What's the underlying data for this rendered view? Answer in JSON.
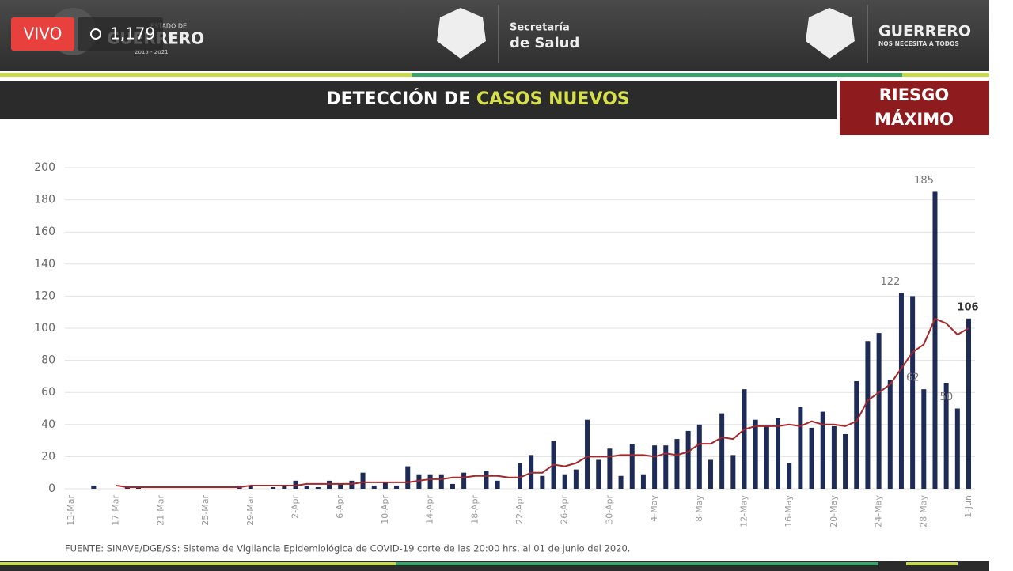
{
  "overlay": {
    "live": "VIVO",
    "viewers": "1,179"
  },
  "header": {
    "gov_small": "ESTADO DE",
    "gov_name": "GUERRERO",
    "gov_years": "2015 - 2021",
    "sec_line1": "Secretaría",
    "sec_line2": "de Salud",
    "brand": "GUERRERO",
    "brand_tag": "NOS NECESITA A TODOS",
    "title_part1": "DETECCIÓN DE",
    "title_part2": "CASOS NUEVOS",
    "risk_line1": "RIESGO",
    "risk_line2": "MÁXIMO"
  },
  "footer": {
    "source": "FUENTE: SINAVE/DGE/SS: Sistema de Vigilancia Epidemiológica de COVID-19 corte de las 20:00 hrs. al 01 de junio del 2020."
  },
  "chart_data": {
    "type": "bar",
    "categories": [
      "13-Mar",
      null,
      null,
      null,
      "17-Mar",
      null,
      null,
      null,
      "21-Mar",
      null,
      null,
      null,
      "25-Mar",
      null,
      null,
      null,
      "29-Mar",
      null,
      null,
      null,
      "2-Apr",
      null,
      null,
      null,
      "6-Apr",
      null,
      null,
      null,
      "10-Apr",
      null,
      null,
      null,
      "14-Apr",
      null,
      null,
      null,
      "18-Apr",
      null,
      null,
      null,
      "22-Apr",
      null,
      null,
      null,
      "26-Apr",
      null,
      null,
      null,
      "30-Apr",
      null,
      null,
      null,
      "4-May",
      null,
      null,
      null,
      "8-May",
      null,
      null,
      null,
      "12-May",
      null,
      null,
      null,
      "16-May",
      null,
      null,
      null,
      "20-May",
      null,
      null,
      null,
      "24-May",
      null,
      null,
      null,
      "28-May",
      null,
      null,
      null,
      "1-Jun"
    ],
    "series": [
      {
        "type": "bar",
        "color": "#1f2b57",
        "labeled": [
          74,
          76,
          77,
          79,
          80
        ],
        "bold": [
          80
        ],
        "values": [
          0,
          0,
          2,
          0,
          0,
          1,
          1,
          0,
          0,
          0,
          0,
          0,
          0,
          0,
          0,
          2,
          2,
          0,
          1,
          2,
          5,
          2,
          1,
          5,
          3,
          5,
          10,
          2,
          4,
          2,
          14,
          9,
          9,
          9,
          3,
          10,
          0,
          11,
          5,
          0,
          16,
          21,
          8,
          30,
          9,
          12,
          43,
          18,
          25,
          8,
          28,
          9,
          27,
          27,
          31,
          36,
          40,
          18,
          47,
          21,
          62,
          43,
          39,
          44,
          16,
          51,
          38,
          48,
          39,
          34,
          67,
          92,
          97,
          68,
          122,
          120,
          62,
          185,
          66,
          50,
          106
        ]
      },
      {
        "type": "line",
        "color": "#a3282b",
        "values": [
          null,
          null,
          null,
          null,
          2,
          1,
          1,
          1,
          1,
          1,
          1,
          1,
          1,
          1,
          1,
          1,
          2,
          2,
          2,
          2,
          2,
          3,
          3,
          3,
          3,
          3,
          4,
          4,
          4,
          4,
          4,
          5,
          6,
          6,
          7,
          7,
          8,
          8,
          8,
          7,
          7,
          10,
          10,
          15,
          14,
          16,
          20,
          20,
          20,
          21,
          21,
          21,
          20,
          22,
          21,
          23,
          28,
          28,
          32,
          31,
          37,
          39,
          39,
          39,
          40,
          39,
          42,
          40,
          40,
          39,
          42,
          55,
          60,
          65,
          75,
          85,
          90,
          106,
          103,
          96,
          100
        ]
      }
    ],
    "ylim": [
      0,
      200
    ],
    "yticks": [
      0,
      20,
      40,
      60,
      80,
      100,
      120,
      140,
      160,
      180,
      200
    ],
    "grid": true
  }
}
